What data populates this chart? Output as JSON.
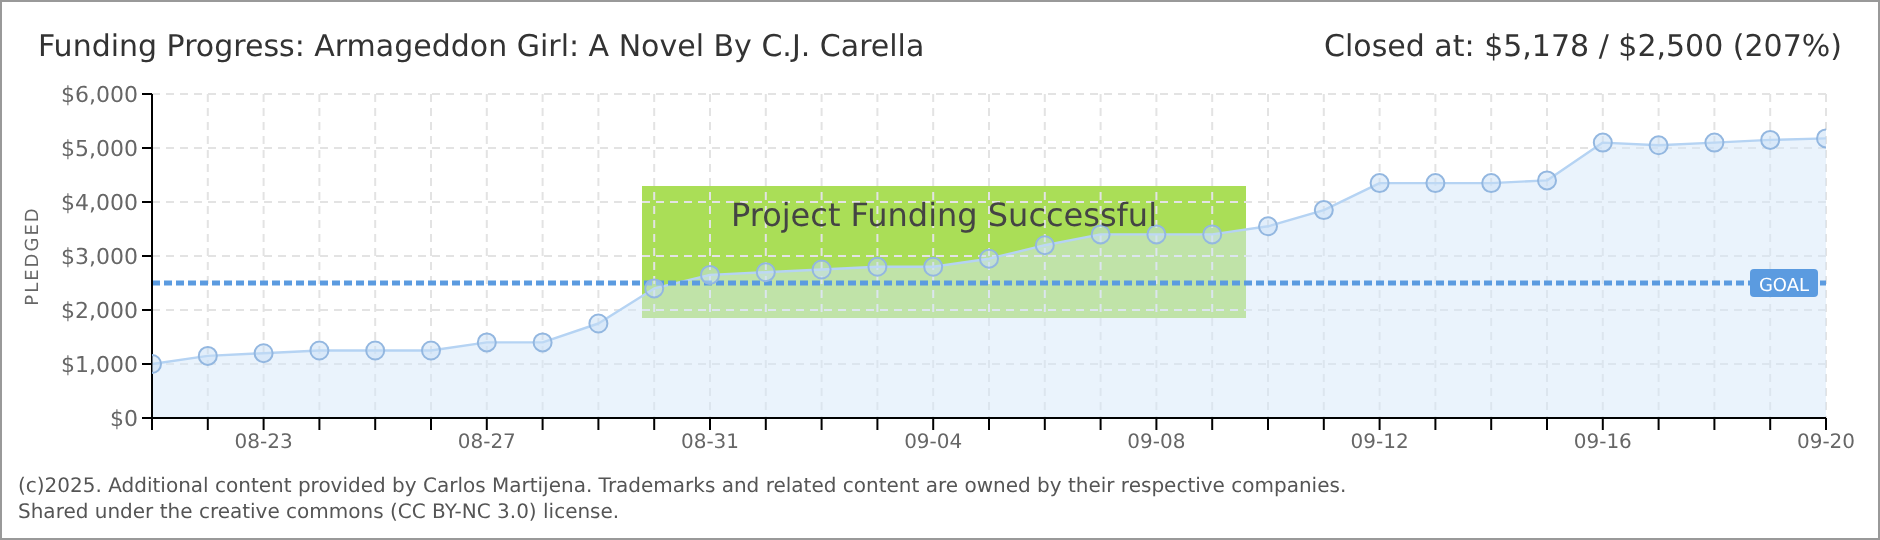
{
  "chart_data": {
    "type": "area",
    "title": "Funding Progress: Armageddon Girl: A Novel By C.J. Carella",
    "subtitle": "Closed at:  $5,178 /  $2,500 (207%)",
    "ylabel": "PLEDGED",
    "x": [
      "--08-21",
      "--08-22",
      "--08-23",
      "--08-24",
      "--08-25",
      "--08-26",
      "--08-27",
      "--08-28",
      "--08-29",
      "--08-30",
      "--08-31",
      "--09-01",
      "--09-02",
      "--09-03",
      "--09-04",
      "--09-05",
      "--09-06",
      "--09-07",
      "--09-08",
      "--09-09",
      "--09-10",
      "--09-11",
      "--09-12",
      "--09-13",
      "--09-14",
      "--09-15",
      "--09-16",
      "--09-17",
      "--09-18",
      "--09-19",
      "--09-20"
    ],
    "series": [
      {
        "color": "#b5d3f3",
        "values": [
          1000,
          1150,
          1200,
          1250,
          1250,
          1250,
          1400,
          1400,
          1750,
          2400,
          2650,
          2700,
          2750,
          2800,
          2800,
          2950,
          3200,
          3400,
          3400,
          3400,
          3550,
          3850,
          4350,
          4350,
          4350,
          4400,
          5100,
          5050,
          5100,
          5150,
          5178
        ]
      }
    ],
    "xlim": [
      "--08-21",
      "--09-20"
    ],
    "xticks": [
      {
        "value": "--08-21",
        "label": null
      },
      {
        "value": "--08-22",
        "label": null
      },
      {
        "value": "--08-23",
        "label": "08-23"
      },
      {
        "value": "--08-24",
        "label": null
      },
      {
        "value": "--08-25",
        "label": null
      },
      {
        "value": "--08-26",
        "label": null
      },
      {
        "value": "--08-27",
        "label": "08-27"
      },
      {
        "value": "--08-28",
        "label": null
      },
      {
        "value": "--08-29",
        "label": null
      },
      {
        "value": "--08-30",
        "label": null
      },
      {
        "value": "--08-31",
        "label": "08-31"
      },
      {
        "value": "--09-01",
        "label": null
      },
      {
        "value": "--09-02",
        "label": null
      },
      {
        "value": "--09-03",
        "label": null
      },
      {
        "value": "--09-04",
        "label": "09-04"
      },
      {
        "value": "--09-05",
        "label": null
      },
      {
        "value": "--09-06",
        "label": null
      },
      {
        "value": "--09-07",
        "label": null
      },
      {
        "value": "--09-08",
        "label": "09-08"
      },
      {
        "value": "--09-09",
        "label": null
      },
      {
        "value": "--09-10",
        "label": null
      },
      {
        "value": "--09-11",
        "label": null
      },
      {
        "value": "--09-12",
        "label": "09-12"
      },
      {
        "value": "--09-13",
        "label": null
      },
      {
        "value": "--09-14",
        "label": null
      },
      {
        "value": "--09-15",
        "label": null
      },
      {
        "value": "--09-16",
        "label": "09-16"
      },
      {
        "value": "--09-17",
        "label": null
      },
      {
        "value": "--09-18",
        "label": null
      },
      {
        "value": "--09-19",
        "label": null
      },
      {
        "value": "--09-20",
        "label": "09-20"
      }
    ],
    "ylim": [
      0,
      6000
    ],
    "yticks": [
      {
        "value": 0,
        "label": "$0"
      },
      {
        "value": 1000,
        "label": "$1,000"
      },
      {
        "value": 2000,
        "label": "$2,000"
      },
      {
        "value": 3000,
        "label": "$3,000"
      },
      {
        "value": 4000,
        "label": "$4,000"
      },
      {
        "value": 5000,
        "label": "$5,000"
      },
      {
        "value": 6000,
        "label": "$6,000"
      }
    ],
    "grid": true,
    "marker": "circle",
    "legend": false,
    "ref_lines": [
      {
        "axis": "y",
        "value": 2500,
        "label": "GOAL",
        "color": "#5b9be0",
        "line_style": "dashed"
      }
    ],
    "annotations": [
      "Project Funding Successful",
      "(c)2025. Additional content provided by Carlos Martijena. Trademarks and related content are owned by their respective companies.",
      "Shared under the creative commons (CC BY-NC 3.0) license."
    ]
  }
}
